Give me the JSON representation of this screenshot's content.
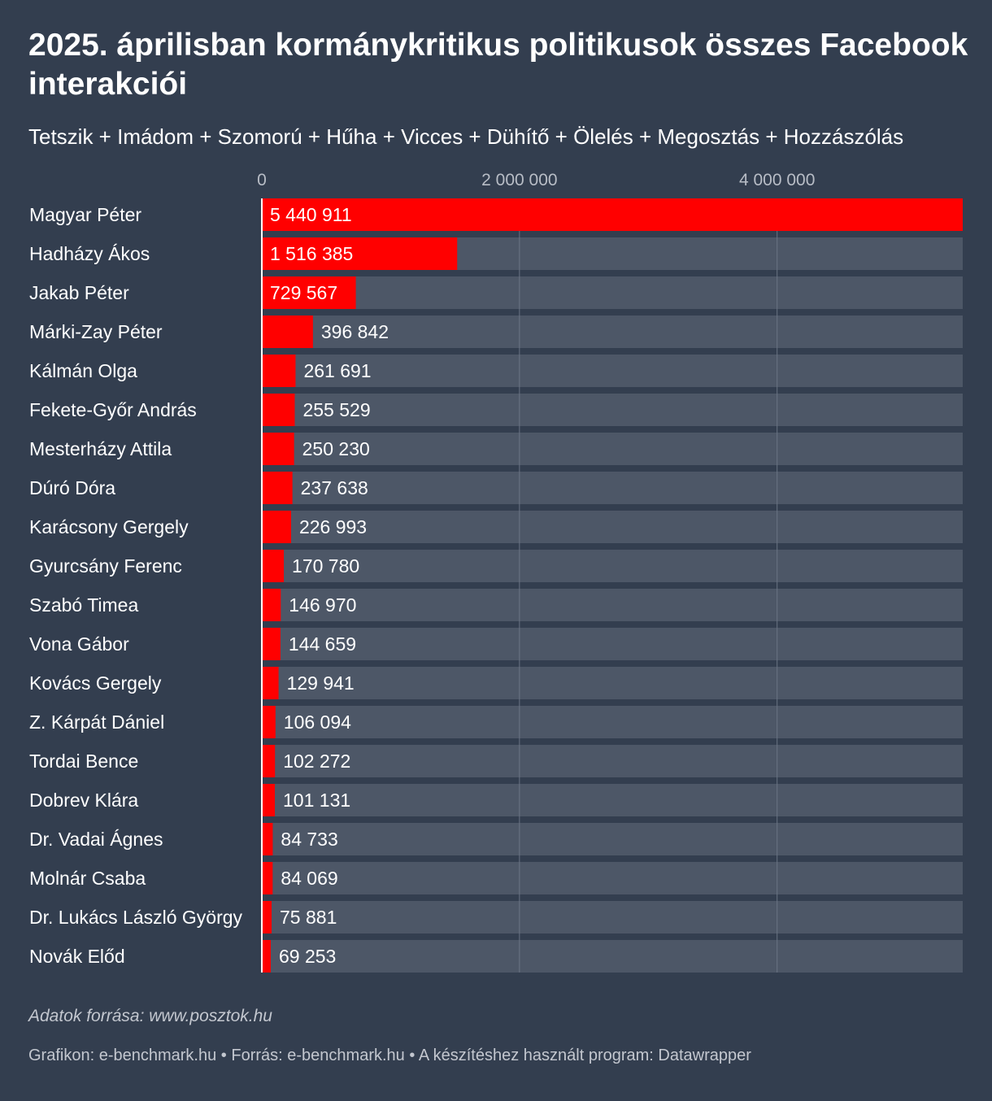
{
  "header": {
    "title": "2025. áprilisban kormánykritikus politikusok összes Facebook interakciói",
    "subtitle": "Tetszik + Imádom + Szomorú + Hűha + Vicces + Dühítő + Ölelés + Megosztás + Hozzászólás"
  },
  "footer": {
    "source_note": "Adatok forrása: www.posztok.hu",
    "credit_graphic": "Grafikon: e-benchmark.hu",
    "credit_source": "Forrás: e-benchmark.hu",
    "credit_program": "A készítéshez használt program: Datawrapper",
    "separator": "•"
  },
  "colors": {
    "background": "#333e4f",
    "bar": "#ff0000",
    "bar_track": "#4d5767",
    "gridline": "#6b7484",
    "axis_label": "#b8bdc6",
    "text": "#ffffff"
  },
  "chart_data": {
    "type": "bar",
    "orientation": "horizontal",
    "xlim": [
      0,
      5440911
    ],
    "ticks": [
      {
        "value": 0,
        "label": "0"
      },
      {
        "value": 2000000,
        "label": "2 000 000"
      },
      {
        "value": 4000000,
        "label": "4 000 000"
      }
    ],
    "grid": true,
    "categories": [
      "Magyar Péter",
      "Hadházy Ákos",
      "Jakab Péter",
      "Márki-Zay Péter",
      "Kálmán Olga",
      "Fekete-Győr András",
      "Mesterházy Attila",
      "Dúró Dóra",
      "Karácsony Gergely",
      "Gyurcsány Ferenc",
      "Szabó Timea",
      "Vona Gábor",
      "Kovács Gergely",
      "Z. Kárpát Dániel",
      "Tordai Bence",
      "Dobrev Klára",
      "Dr. Vadai Ágnes",
      "Molnár Csaba",
      "Dr. Lukács László György",
      "Novák Előd"
    ],
    "values": [
      5440911,
      1516385,
      729567,
      396842,
      261691,
      255529,
      250230,
      237638,
      226993,
      170780,
      146970,
      144659,
      129941,
      106094,
      102272,
      101131,
      84733,
      84069,
      75881,
      69253
    ],
    "value_labels": [
      "5 440 911",
      "1 516 385",
      "729 567",
      "396 842",
      "261 691",
      "255 529",
      "250 230",
      "237 638",
      "226 993",
      "170 780",
      "146 970",
      "144 659",
      "129 941",
      "106 094",
      "102 272",
      "101 131",
      "84 733",
      "84 069",
      "75 881",
      "69 253"
    ]
  }
}
